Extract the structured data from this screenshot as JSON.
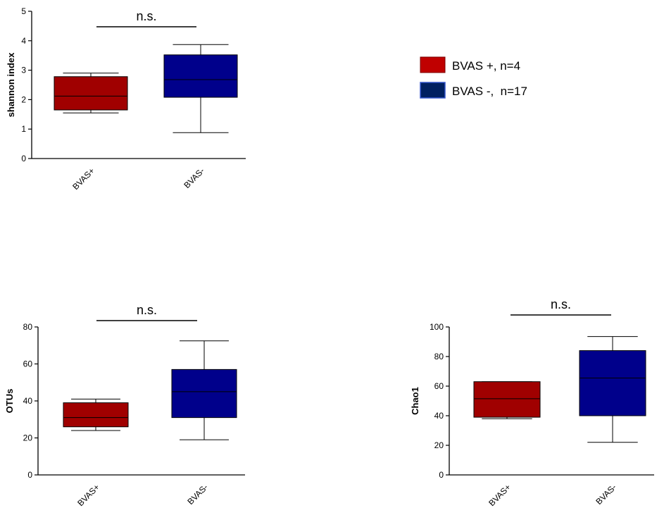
{
  "chart_data": [
    {
      "type": "box",
      "ylabel": "shannon index",
      "ylim": [
        0,
        5
      ],
      "yticks": [
        0,
        1,
        2,
        3,
        4,
        5
      ],
      "categories": [
        "BVAS+",
        "BVAS-"
      ],
      "boxes": [
        {
          "category": "BVAS+",
          "min": 1.55,
          "q1": 1.65,
          "median": 2.12,
          "q3": 2.78,
          "max": 2.9,
          "color": "#a00000"
        },
        {
          "category": "BVAS-",
          "min": 0.88,
          "q1": 2.08,
          "median": 2.68,
          "q3": 3.52,
          "max": 3.87,
          "color": "#00008b"
        }
      ],
      "annotation": "n.s."
    },
    {
      "type": "box",
      "ylabel": "OTUs",
      "ylim": [
        0,
        80
      ],
      "yticks": [
        0,
        20,
        40,
        60,
        80
      ],
      "categories": [
        "BVAS+",
        "BVAS-"
      ],
      "boxes": [
        {
          "category": "BVAS+",
          "min": 24,
          "q1": 26,
          "median": 31,
          "q3": 39,
          "max": 41,
          "color": "#a00000"
        },
        {
          "category": "BVAS-",
          "min": 19,
          "q1": 31,
          "median": 45,
          "q3": 57,
          "max": 72.5,
          "color": "#00008b"
        }
      ],
      "annotation": "n.s."
    },
    {
      "type": "box",
      "ylabel": "Chao1",
      "ylim": [
        0,
        100
      ],
      "yticks": [
        0,
        20,
        40,
        60,
        80,
        100
      ],
      "categories": [
        "BVAS+",
        "BVAS-"
      ],
      "boxes": [
        {
          "category": "BVAS+",
          "min": 38,
          "q1": 39,
          "median": 51.5,
          "q3": 63,
          "max": 63,
          "color": "#a00000"
        },
        {
          "category": "BVAS-",
          "min": 22,
          "q1": 40,
          "median": 65.5,
          "q3": 84,
          "max": 93.5,
          "color": "#00008b"
        }
      ],
      "annotation": "n.s."
    }
  ],
  "legend": {
    "placement": "top-right",
    "items": [
      {
        "label": "BVAS +, n=4",
        "color": "#c00000"
      },
      {
        "label": "BVAS -,  n=17",
        "color": "#002060"
      }
    ]
  }
}
